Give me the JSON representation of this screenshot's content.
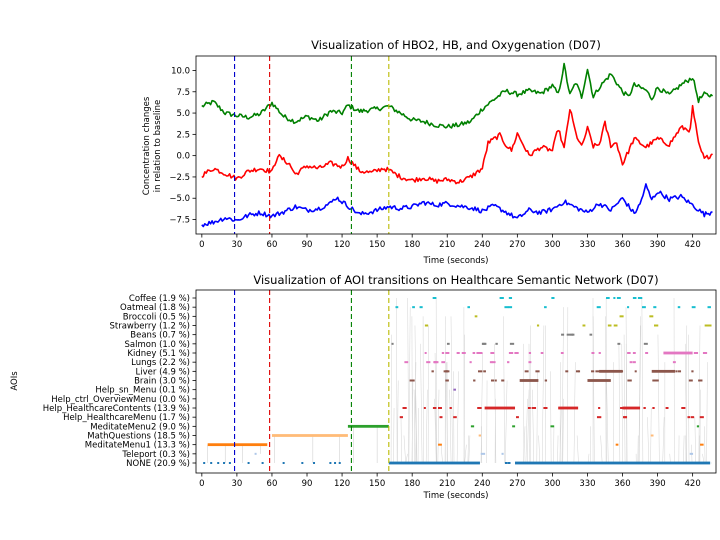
{
  "figure": {
    "background": "#ffffff"
  },
  "chart_data": [
    {
      "type": "line",
      "title": "Visualization of HBO2, HB, and Oxygenation (D07)",
      "xlabel": "Time (seconds)",
      "ylabel_lines": [
        "Concentration changes",
        "in relation to baseline"
      ],
      "xlim": [
        -5,
        440
      ],
      "ylim": [
        -9.2,
        11.7
      ],
      "xticks": [
        0,
        30,
        60,
        90,
        120,
        150,
        180,
        210,
        240,
        270,
        300,
        330,
        360,
        390,
        420
      ],
      "yticks": [
        -7.5,
        -5.0,
        -2.5,
        0.0,
        2.5,
        5.0,
        7.5,
        10.0
      ],
      "ytick_labels": [
        "−7.5",
        "−5.0",
        "−2.5",
        "0.0",
        "2.5",
        "5.0",
        "7.5",
        "10.0"
      ],
      "grid": false,
      "legend": null,
      "series": [
        {
          "color": "#008000",
          "points": [
            [
              0,
              5.8
            ],
            [
              10,
              6.3
            ],
            [
              20,
              5.0
            ],
            [
              30,
              4.7
            ],
            [
              40,
              4.5
            ],
            [
              50,
              4.9
            ],
            [
              60,
              6.2
            ],
            [
              70,
              4.6
            ],
            [
              80,
              4.0
            ],
            [
              90,
              4.6
            ],
            [
              100,
              4.1
            ],
            [
              110,
              5.2
            ],
            [
              120,
              5.0
            ],
            [
              125,
              5.9
            ],
            [
              135,
              5.2
            ],
            [
              150,
              5.5
            ],
            [
              160,
              5.8
            ],
            [
              170,
              5.0
            ],
            [
              180,
              4.2
            ],
            [
              190,
              4.0
            ],
            [
              200,
              3.6
            ],
            [
              210,
              3.4
            ],
            [
              220,
              3.6
            ],
            [
              230,
              4.0
            ],
            [
              240,
              5.5
            ],
            [
              250,
              6.6
            ],
            [
              260,
              7.6
            ],
            [
              270,
              7.2
            ],
            [
              280,
              7.6
            ],
            [
              290,
              7.3
            ],
            [
              300,
              8.2
            ],
            [
              305,
              7.2
            ],
            [
              310,
              10.6
            ],
            [
              315,
              7.1
            ],
            [
              320,
              8.6
            ],
            [
              325,
              6.9
            ],
            [
              330,
              10.2
            ],
            [
              335,
              6.9
            ],
            [
              340,
              8.0
            ],
            [
              350,
              9.6
            ],
            [
              360,
              7.5
            ],
            [
              365,
              6.9
            ],
            [
              370,
              8.3
            ],
            [
              380,
              7.7
            ],
            [
              385,
              6.7
            ],
            [
              390,
              8.0
            ],
            [
              400,
              7.1
            ],
            [
              410,
              8.3
            ],
            [
              420,
              9.2
            ],
            [
              425,
              6.5
            ],
            [
              430,
              7.2
            ],
            [
              437,
              7.0
            ]
          ]
        },
        {
          "color": "#ff0000",
          "points": [
            [
              0,
              -2.3
            ],
            [
              10,
              -1.5
            ],
            [
              20,
              -2.1
            ],
            [
              30,
              -2.7
            ],
            [
              40,
              -1.8
            ],
            [
              50,
              -1.5
            ],
            [
              60,
              -1.9
            ],
            [
              65,
              0.0
            ],
            [
              75,
              -1.0
            ],
            [
              80,
              -2.2
            ],
            [
              90,
              -1.2
            ],
            [
              100,
              -1.5
            ],
            [
              110,
              -0.9
            ],
            [
              120,
              -1.3
            ],
            [
              125,
              -0.3
            ],
            [
              135,
              -1.8
            ],
            [
              145,
              -2.0
            ],
            [
              155,
              -1.5
            ],
            [
              160,
              -1.7
            ],
            [
              170,
              -2.5
            ],
            [
              180,
              -2.9
            ],
            [
              190,
              -2.6
            ],
            [
              200,
              -3.0
            ],
            [
              210,
              -2.8
            ],
            [
              220,
              -3.1
            ],
            [
              230,
              -2.5
            ],
            [
              240,
              -1.5
            ],
            [
              245,
              1.5
            ],
            [
              255,
              2.4
            ],
            [
              260,
              1.3
            ],
            [
              265,
              0.6
            ],
            [
              270,
              2.6
            ],
            [
              280,
              0.0
            ],
            [
              290,
              1.0
            ],
            [
              300,
              0.6
            ],
            [
              305,
              3.2
            ],
            [
              310,
              0.8
            ],
            [
              315,
              5.5
            ],
            [
              320,
              2.6
            ],
            [
              325,
              1.0
            ],
            [
              330,
              3.2
            ],
            [
              335,
              1.1
            ],
            [
              340,
              1.3
            ],
            [
              345,
              3.8
            ],
            [
              350,
              1.2
            ],
            [
              355,
              1.5
            ],
            [
              360,
              -1.0
            ],
            [
              370,
              2.0
            ],
            [
              380,
              1.0
            ],
            [
              390,
              2.0
            ],
            [
              400,
              1.3
            ],
            [
              410,
              3.3
            ],
            [
              418,
              3.0
            ],
            [
              420,
              5.7
            ],
            [
              425,
              1.4
            ],
            [
              430,
              -0.4
            ],
            [
              437,
              0.2
            ]
          ]
        },
        {
          "color": "#0000ff",
          "points": [
            [
              0,
              -8.1
            ],
            [
              10,
              -7.8
            ],
            [
              20,
              -7.3
            ],
            [
              30,
              -7.6
            ],
            [
              40,
              -7.0
            ],
            [
              50,
              -6.7
            ],
            [
              60,
              -7.1
            ],
            [
              70,
              -6.6
            ],
            [
              80,
              -6.0
            ],
            [
              90,
              -6.4
            ],
            [
              100,
              -6.2
            ],
            [
              110,
              -5.6
            ],
            [
              115,
              -4.9
            ],
            [
              125,
              -5.9
            ],
            [
              135,
              -6.9
            ],
            [
              145,
              -6.6
            ],
            [
              155,
              -6.2
            ],
            [
              160,
              -6.0
            ],
            [
              170,
              -6.2
            ],
            [
              180,
              -6.0
            ],
            [
              190,
              -5.5
            ],
            [
              200,
              -5.8
            ],
            [
              210,
              -5.6
            ],
            [
              220,
              -5.9
            ],
            [
              230,
              -6.1
            ],
            [
              240,
              -6.5
            ],
            [
              250,
              -5.9
            ],
            [
              260,
              -6.6
            ],
            [
              270,
              -7.4
            ],
            [
              280,
              -6.4
            ],
            [
              290,
              -6.7
            ],
            [
              300,
              -6.3
            ],
            [
              310,
              -5.4
            ],
            [
              320,
              -6.1
            ],
            [
              330,
              -6.7
            ],
            [
              340,
              -5.6
            ],
            [
              350,
              -6.4
            ],
            [
              360,
              -5.0
            ],
            [
              370,
              -6.8
            ],
            [
              375,
              -5.7
            ],
            [
              380,
              -3.5
            ],
            [
              385,
              -5.2
            ],
            [
              390,
              -4.2
            ],
            [
              400,
              -5.1
            ],
            [
              410,
              -4.8
            ],
            [
              420,
              -5.8
            ],
            [
              430,
              -6.9
            ],
            [
              437,
              -6.6
            ]
          ]
        }
      ],
      "vlines": [
        {
          "x": 28,
          "color": "#0000cc"
        },
        {
          "x": 58,
          "color": "#dd0000"
        },
        {
          "x": 128,
          "color": "#008000"
        },
        {
          "x": 160,
          "color": "#bbbb00"
        }
      ]
    },
    {
      "type": "scatter",
      "title": "Visualization of AOI transitions on Healthcare Semantic Network (D07)",
      "xlabel": "Time (seconds)",
      "ylabel": "AOIs",
      "xlim": [
        -5,
        440
      ],
      "xticks": [
        0,
        30,
        60,
        90,
        120,
        150,
        180,
        210,
        240,
        270,
        300,
        330,
        360,
        390,
        420
      ],
      "grid": false,
      "categories": [
        "Coffee (1.9 %)",
        "Oatmeal (1.8 %)",
        "Broccoli (0.5 %)",
        "Strawberry (1.2 %)",
        "Beans (0.7 %)",
        "Salmon (1.0 %)",
        "Kidney (5.1 %)",
        "Lungs (2.2 %)",
        "Liver (4.9 %)",
        "Brain (3.0 %)",
        "Help_sn_Menu (0.1 %)",
        "Help_ctrl_OverviewMenu (0.0 %)",
        "Help_HealthcareContents (13.9 %)",
        "Help_HealthcareMenu (1.7 %)",
        "MeditateMenu2 (9.0 %)",
        "MathQuestions (18.5 %)",
        "MeditateMenu1 (13.3 %)",
        "Teleport (0.3 %)",
        "NONE (20.9 %)"
      ],
      "category_colors": [
        "#17becf",
        "#17becf",
        "#bcbd22",
        "#bcbd22",
        "#7f7f7f",
        "#7f7f7f",
        "#e377c2",
        "#e377c2",
        "#8c564b",
        "#8c564b",
        "#9467bd",
        "#9467bd",
        "#d62728",
        "#d62728",
        "#2ca02c",
        "#ffbb78",
        "#ff7f0e",
        "#aec7e8",
        "#1f77b4"
      ],
      "segments": [
        {
          "category": 16,
          "x0": 5,
          "x1": 56
        },
        {
          "category": 15,
          "x0": 60,
          "x1": 125
        },
        {
          "category": 14,
          "x0": 125,
          "x1": 160
        },
        {
          "category": 12,
          "x0": 242,
          "x1": 268
        },
        {
          "category": 12,
          "x0": 360,
          "x1": 375
        },
        {
          "category": 18,
          "x0": 160,
          "x1": 238
        },
        {
          "category": 18,
          "x0": 268,
          "x1": 435
        },
        {
          "category": 6,
          "x0": 395,
          "x1": 420
        },
        {
          "category": 8,
          "x0": 340,
          "x1": 360
        },
        {
          "category": 8,
          "x0": 385,
          "x1": 405
        },
        {
          "category": 9,
          "x0": 272,
          "x1": 288
        },
        {
          "category": 9,
          "x0": 330,
          "x1": 350
        },
        {
          "category": 12,
          "x0": 305,
          "x1": 322
        }
      ],
      "scatter_region": {
        "x0": 160,
        "x1": 437
      },
      "points_per_row": [
        10,
        14,
        3,
        8,
        5,
        8,
        26,
        14,
        22,
        16,
        1,
        0,
        18,
        10,
        4,
        2,
        3,
        3,
        18
      ],
      "vlines": [
        {
          "x": 28,
          "color": "#0000cc"
        },
        {
          "x": 58,
          "color": "#dd0000"
        },
        {
          "x": 128,
          "color": "#008000"
        },
        {
          "x": 160,
          "color": "#bbbb00"
        }
      ]
    }
  ]
}
